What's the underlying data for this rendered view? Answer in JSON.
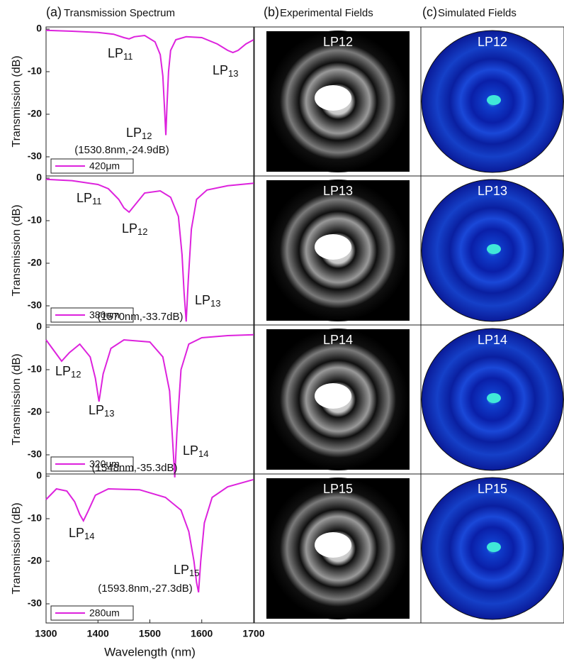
{
  "headers": [
    {
      "letter": "(a)",
      "title": "Transmission Spectrum"
    },
    {
      "letter": "(b)",
      "title": "Experimental Fields"
    },
    {
      "letter": "(c)",
      "title": "Simulated Fields"
    }
  ],
  "fields": {
    "experimental": [
      "LP12",
      "LP13",
      "LP14",
      "LP15"
    ],
    "simulated": [
      "LP12",
      "LP13",
      "LP14",
      "LP15"
    ]
  },
  "chart_data": [
    {
      "type": "line",
      "y_label": "Transmission (dB)",
      "xlim": [
        1300,
        1700
      ],
      "ylim": [
        -34.5,
        0.5
      ],
      "yticks": [
        0,
        -10,
        -20,
        -30
      ],
      "x": [
        1300,
        1350,
        1400,
        1430,
        1450,
        1460,
        1470,
        1490,
        1510,
        1520,
        1525,
        1528,
        1530.8,
        1533,
        1536,
        1540,
        1550,
        1570,
        1600,
        1630,
        1650,
        1660,
        1670,
        1685,
        1700
      ],
      "series": [
        {
          "name": "420μm",
          "color": "#dd22dd",
          "values": [
            -0.3,
            -0.5,
            -0.8,
            -1.2,
            -2,
            -2.3,
            -1.8,
            -1.5,
            -3,
            -6,
            -11,
            -18,
            -24.9,
            -18,
            -10,
            -5,
            -2.5,
            -1.8,
            -2,
            -3.5,
            -5,
            -5.5,
            -5,
            -3.5,
            -2.5
          ]
        }
      ],
      "annotations": [
        {
          "mode": "LP",
          "index": "11"
        },
        {
          "mode": "LP",
          "index": "13"
        },
        {
          "mode": "LP",
          "index": "12"
        },
        {
          "text": "(1530.8nm,-24.9dB)"
        }
      ]
    },
    {
      "type": "line",
      "y_label": "Transmission (dB)",
      "xlim": [
        1300,
        1700
      ],
      "ylim": [
        -34.5,
        0.5
      ],
      "yticks": [
        0,
        -10,
        -20,
        -30
      ],
      "x": [
        1300,
        1350,
        1400,
        1420,
        1440,
        1450,
        1460,
        1470,
        1490,
        1520,
        1540,
        1555,
        1562,
        1566,
        1570,
        1574,
        1580,
        1590,
        1610,
        1650,
        1700
      ],
      "series": [
        {
          "name": "380um",
          "color": "#dd22dd",
          "values": [
            -0.3,
            -0.6,
            -1.5,
            -2.5,
            -5,
            -7,
            -8,
            -6.5,
            -3.5,
            -3,
            -4.5,
            -9,
            -18,
            -27,
            -33.7,
            -24,
            -12,
            -5,
            -2.8,
            -1.8,
            -1.2
          ]
        }
      ],
      "annotations": [
        {
          "mode": "LP",
          "index": "11"
        },
        {
          "mode": "LP",
          "index": "12"
        },
        {
          "mode": "LP",
          "index": "13"
        },
        {
          "text": "(1570nm,-33.7dB)"
        }
      ]
    },
    {
      "type": "line",
      "y_label": "Transmission (dB)",
      "xlim": [
        1300,
        1700
      ],
      "ylim": [
        -34.5,
        0.5
      ],
      "yticks": [
        0,
        -10,
        -20,
        -30
      ],
      "x": [
        1300,
        1315,
        1330,
        1345,
        1365,
        1385,
        1395,
        1402,
        1410,
        1425,
        1450,
        1500,
        1525,
        1538,
        1544,
        1548,
        1552,
        1560,
        1575,
        1600,
        1650,
        1700
      ],
      "series": [
        {
          "name": "320um",
          "color": "#dd22dd",
          "values": [
            -3,
            -5.5,
            -8,
            -6,
            -4,
            -7,
            -12,
            -17.5,
            -11,
            -5,
            -3,
            -3.5,
            -7,
            -15,
            -27,
            -35.3,
            -25,
            -10,
            -4,
            -2.5,
            -2,
            -1.8
          ]
        }
      ],
      "annotations": [
        {
          "mode": "LP",
          "index": "12"
        },
        {
          "mode": "LP",
          "index": "13"
        },
        {
          "mode": "LP",
          "index": "14"
        },
        {
          "text": "(1548nm,-35.3dB)"
        }
      ]
    },
    {
      "type": "line",
      "y_label": "Transmission (dB)",
      "x_label": "Wavelength (nm)",
      "xlim": [
        1300,
        1700
      ],
      "xticks": [
        1300,
        1400,
        1500,
        1600,
        1700
      ],
      "ylim": [
        -34.5,
        0.5
      ],
      "yticks": [
        0,
        -10,
        -20,
        -30
      ],
      "x": [
        1300,
        1320,
        1340,
        1355,
        1365,
        1372,
        1380,
        1395,
        1420,
        1480,
        1530,
        1560,
        1575,
        1585,
        1590,
        1593.8,
        1598,
        1605,
        1620,
        1650,
        1700
      ],
      "series": [
        {
          "name": "280um",
          "color": "#dd22dd",
          "values": [
            -5.5,
            -3,
            -3.5,
            -6,
            -9,
            -10.5,
            -8.5,
            -4.5,
            -3,
            -3.2,
            -5,
            -8,
            -13,
            -20,
            -25,
            -27.3,
            -20,
            -11,
            -5,
            -2.5,
            -0.8
          ]
        }
      ],
      "annotations": [
        {
          "mode": "LP",
          "index": "14"
        },
        {
          "mode": "LP",
          "index": "15"
        },
        {
          "text": "(1593.8nm,-27.3dB)"
        }
      ]
    }
  ]
}
